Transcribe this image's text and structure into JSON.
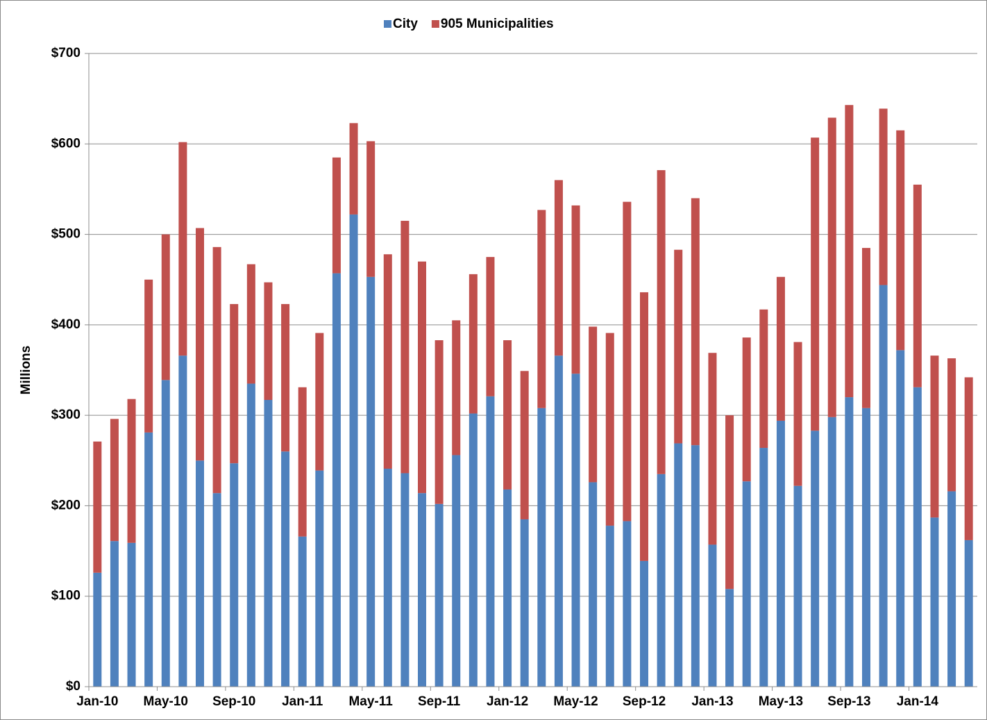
{
  "chart_data": {
    "type": "stacked_bar",
    "y_label": "Millions",
    "categories": [
      "Jan-10",
      null,
      null,
      null,
      "May-10",
      null,
      null,
      null,
      "Sep-10",
      null,
      null,
      null,
      "Jan-11",
      null,
      null,
      null,
      "May-11",
      null,
      null,
      null,
      "Sep-11",
      null,
      null,
      null,
      "Jan-12",
      null,
      null,
      null,
      "May-12",
      null,
      null,
      null,
      "Sep-12",
      null,
      null,
      null,
      "Jan-13",
      null,
      null,
      null,
      "May-13",
      null,
      null,
      null,
      "Sep-13",
      null,
      null,
      null,
      "Jan-14",
      null,
      null,
      null
    ],
    "series": [
      {
        "name": "City",
        "color": "#4f81bd",
        "values": [
          126,
          161,
          159,
          281,
          339,
          366,
          250,
          214,
          247,
          335,
          317,
          260,
          166,
          239,
          457,
          522,
          453,
          241,
          236,
          214,
          202,
          256,
          302,
          321,
          218,
          185,
          308,
          366,
          346,
          226,
          178,
          183,
          139,
          235,
          269,
          267,
          157,
          108,
          227,
          264,
          294,
          222,
          283,
          298,
          320,
          308,
          444,
          372,
          331,
          187,
          216,
          162
        ]
      },
      {
        "name": "905 Municipalities",
        "color": "#c0504d",
        "values": [
          145,
          135,
          159,
          169,
          161,
          236,
          257,
          272,
          176,
          132,
          130,
          163,
          165,
          152,
          128,
          101,
          150,
          237,
          279,
          256,
          181,
          149,
          154,
          154,
          165,
          164,
          219,
          194,
          186,
          172,
          213,
          353,
          297,
          336,
          214,
          273,
          212,
          192,
          159,
          153,
          159,
          159,
          324,
          331,
          323,
          177,
          195,
          243,
          224,
          179,
          147,
          180
        ]
      }
    ],
    "ylim": [
      0,
      700
    ],
    "yticks": [
      {
        "value": 0,
        "label": "$0"
      },
      {
        "value": 100,
        "label": "$100"
      },
      {
        "value": 200,
        "label": "$200"
      },
      {
        "value": 300,
        "label": "$300"
      },
      {
        "value": 400,
        "label": "$400"
      },
      {
        "value": 500,
        "label": "$500"
      },
      {
        "value": 600,
        "label": "$600"
      },
      {
        "value": 700,
        "label": "$700"
      }
    ],
    "grid": true,
    "legend": "top"
  }
}
